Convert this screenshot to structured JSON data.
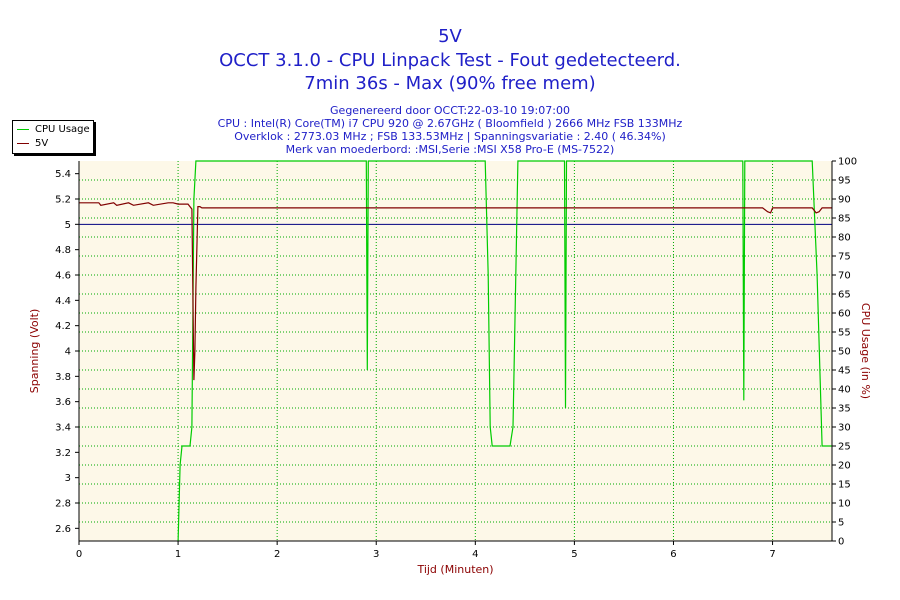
{
  "titles": {
    "line1": "5V",
    "line2": "OCCT 3.1.0 - CPU Linpack Test - Fout gedetecteerd.",
    "line3": "7min 36s - Max (90% free mem)"
  },
  "info": {
    "line1": "Gegenereerd door OCCT:22-03-10 19:07:00",
    "line2": "CPU : Intel(R) Core(TM) i7 CPU 920 @ 2.67GHz ( Bloomfield ) 2666 MHz FSB 133MHz",
    "line3": "Overklok : 2773.03 MHz ; FSB 133.53MHz | Spanningsvariatie : 2.40 ( 46.34%)",
    "line4": "Merk van moederbord: :MSI,Serie :MSI X58 Pro-E (MS-7522)"
  },
  "legend": {
    "items": [
      {
        "label": "CPU Usage",
        "color": "#00cc00"
      },
      {
        "label": "5V",
        "color": "#800000"
      }
    ]
  },
  "colors": {
    "plot_bg": "#fdf8e8",
    "grid": "#00aa00",
    "reference_line": "#000080",
    "title": "#2020c8",
    "left_axis_label": "#8b0000",
    "right_axis_label": "#8b0000"
  },
  "chart_data": {
    "type": "line",
    "xlabel": "Tijd (Minuten)",
    "ylabel_left": "Spanning (Volt)",
    "ylabel_right": "CPU Usage (in %)",
    "xlim": [
      0,
      7.6
    ],
    "ylim_left": [
      2.5,
      5.5
    ],
    "ylim_right": [
      0,
      100
    ],
    "x_ticks": [
      0,
      1,
      2,
      3,
      4,
      5,
      6,
      7
    ],
    "y_ticks_left": [
      2.6,
      2.8,
      3,
      3.2,
      3.4,
      3.6,
      3.8,
      4,
      4.2,
      4.4,
      4.6,
      4.8,
      5,
      5.2,
      5.4
    ],
    "y_ticks_right": [
      0,
      5,
      10,
      15,
      20,
      25,
      30,
      35,
      40,
      45,
      50,
      55,
      60,
      65,
      70,
      75,
      80,
      85,
      90,
      95,
      100
    ],
    "grid": true,
    "reference_line": 5,
    "series": [
      {
        "name": "CPU Usage",
        "axis": "right",
        "color": "#00cc00",
        "x": [
          1.0,
          1.02,
          1.04,
          1.12,
          1.14,
          1.16,
          1.18,
          2.9,
          2.91,
          2.92,
          2.93,
          4.1,
          4.13,
          4.15,
          4.17,
          4.35,
          4.38,
          4.43,
          4.9,
          4.91,
          4.92,
          4.95,
          6.7,
          6.71,
          6.72,
          6.75,
          7.4,
          7.45,
          7.5,
          7.6
        ],
        "values": [
          0,
          20,
          25,
          25,
          30,
          90,
          100,
          100,
          45,
          100,
          100,
          100,
          70,
          30,
          25,
          25,
          30,
          100,
          100,
          35,
          100,
          100,
          100,
          37,
          100,
          100,
          100,
          70,
          25,
          25
        ]
      },
      {
        "name": "5V",
        "axis": "left",
        "color": "#800000",
        "x": [
          0,
          0.2,
          0.22,
          0.35,
          0.38,
          0.5,
          0.55,
          0.7,
          0.75,
          0.9,
          0.95,
          1.0,
          1.1,
          1.14,
          1.16,
          1.17,
          1.18,
          1.2,
          1.22,
          1.24,
          1.3,
          6.9,
          6.95,
          6.98,
          7.0,
          7.4,
          7.44,
          7.47,
          7.5,
          7.6
        ],
        "values": [
          5.17,
          5.17,
          5.15,
          5.17,
          5.15,
          5.17,
          5.15,
          5.17,
          5.15,
          5.17,
          5.17,
          5.16,
          5.16,
          5.12,
          3.77,
          4.0,
          4.5,
          5.14,
          5.14,
          5.13,
          5.13,
          5.13,
          5.1,
          5.09,
          5.13,
          5.13,
          5.09,
          5.1,
          5.13,
          5.13
        ]
      }
    ]
  }
}
